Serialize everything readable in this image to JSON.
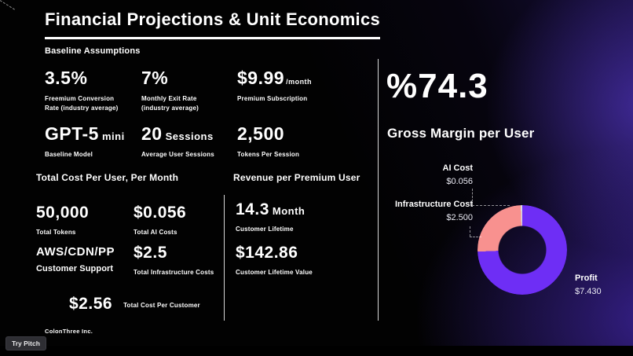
{
  "player": {
    "try_pitch_label": "Try Pitch"
  },
  "colors": {
    "background": "#000000",
    "glow_purple": "#5b3ad6",
    "profit_purple": "#6e2ef5",
    "infra_pink": "#f8918f",
    "text": "#ffffff"
  },
  "slide": {
    "title": "Financial Projections & Unit Economics",
    "baseline_heading": "Baseline Assumptions",
    "assumptions": [
      {
        "value": "3.5%",
        "suffix": "",
        "lines": [
          "Freemium Conversion",
          "Rate (industry average)"
        ]
      },
      {
        "value": "7%",
        "suffix": "",
        "lines": [
          "Monthly Exit Rate",
          "(industry average)"
        ]
      },
      {
        "value": "$9.99",
        "suffix": "/month",
        "lines": [
          "Premium Subscription"
        ]
      },
      {
        "value": "GPT-5",
        "suffix": "mini",
        "lines": [
          "Baseline Model"
        ]
      },
      {
        "value": "20",
        "suffix": "Sessions",
        "lines": [
          "Average User Sessions"
        ]
      },
      {
        "value": "2,500",
        "suffix": "",
        "lines": [
          "Tokens Per Session"
        ]
      }
    ],
    "cost": {
      "heading": "Total Cost Per User, Per Month",
      "items": [
        {
          "value": "50,000",
          "label": "Total Tokens"
        },
        {
          "value": "$0.056",
          "label": "Total AI Costs"
        },
        {
          "value": "AWS/CDN/PP",
          "label": "Customer Support"
        },
        {
          "value": "$2.5",
          "label": "Total Infrastructure Costs"
        }
      ],
      "total_value": "$2.56",
      "total_label": "Total Cost Per Customer"
    },
    "revenue": {
      "heading": "Revenue per Premium User",
      "items": [
        {
          "value": "14.3",
          "suffix": "Month",
          "label": "Customer Lifetime"
        },
        {
          "value": "$142.86",
          "suffix": "",
          "label": "Customer Lifetime Value"
        }
      ]
    },
    "margin": {
      "value": "%74.3",
      "label": "Gross Margin per User"
    },
    "footer_brand": "ColonThree Inc."
  },
  "chart_data": {
    "type": "pie",
    "donut": true,
    "title": "Gross Margin per User",
    "direction": "clockwise",
    "start_angle_deg": 0,
    "slices": [
      {
        "label": "Profit",
        "value": 7.43,
        "display": "$7.430",
        "color": "#6e2ef5"
      },
      {
        "label": "Infrastructure Cost",
        "value": 2.5,
        "display": "$2.500",
        "color": "#f8918f"
      },
      {
        "label": "AI Cost",
        "value": 0.056,
        "display": "$0.056",
        "color": "#d9d9e3"
      }
    ]
  }
}
